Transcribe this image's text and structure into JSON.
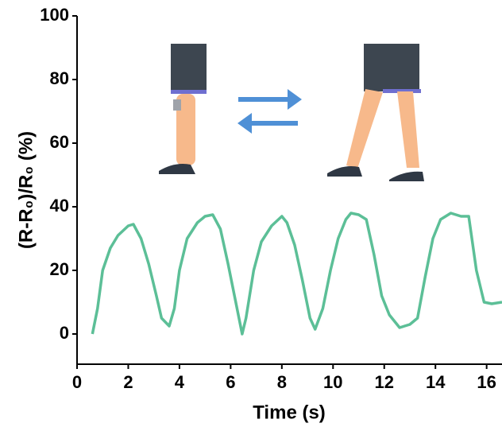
{
  "chart_data": {
    "type": "line",
    "xlabel": "Time (s)",
    "ylabel": "(R-R₀)/R₀ (%)",
    "xlim": [
      0,
      16.6
    ],
    "ylim": [
      -9.5,
      100
    ],
    "xticks": [
      0,
      2,
      4,
      6,
      8,
      10,
      12,
      14,
      16
    ],
    "yticks": [
      0,
      20,
      40,
      60,
      80,
      100
    ],
    "series": [
      {
        "color": "#5cbf97",
        "x": [
          0.6,
          0.8,
          1.0,
          1.3,
          1.6,
          2.0,
          2.2,
          2.5,
          2.8,
          3.1,
          3.3,
          3.6,
          3.8,
          4.0,
          4.3,
          4.7,
          5.0,
          5.3,
          5.6,
          5.9,
          6.2,
          6.45,
          6.6,
          6.9,
          7.2,
          7.6,
          8.0,
          8.2,
          8.5,
          8.8,
          9.1,
          9.3,
          9.6,
          9.9,
          10.2,
          10.5,
          10.7,
          11.0,
          11.3,
          11.6,
          11.9,
          12.2,
          12.6,
          13.0,
          13.3,
          13.6,
          13.9,
          14.2,
          14.6,
          15.0,
          15.3,
          15.6,
          15.9,
          16.2,
          16.6
        ],
        "values": [
          0,
          8,
          20,
          27,
          31,
          34,
          34.5,
          30,
          22,
          12,
          5,
          2.5,
          8,
          20,
          30,
          35,
          37,
          37.5,
          33,
          22,
          10,
          0,
          5,
          20,
          29,
          34,
          37,
          35,
          28,
          17,
          5,
          1.5,
          8,
          20,
          30,
          36,
          38,
          37.5,
          36,
          25,
          12,
          6,
          2,
          3,
          5,
          18,
          30,
          36,
          38,
          37,
          37,
          20,
          10,
          9.5,
          10
        ]
      }
    ]
  }
}
